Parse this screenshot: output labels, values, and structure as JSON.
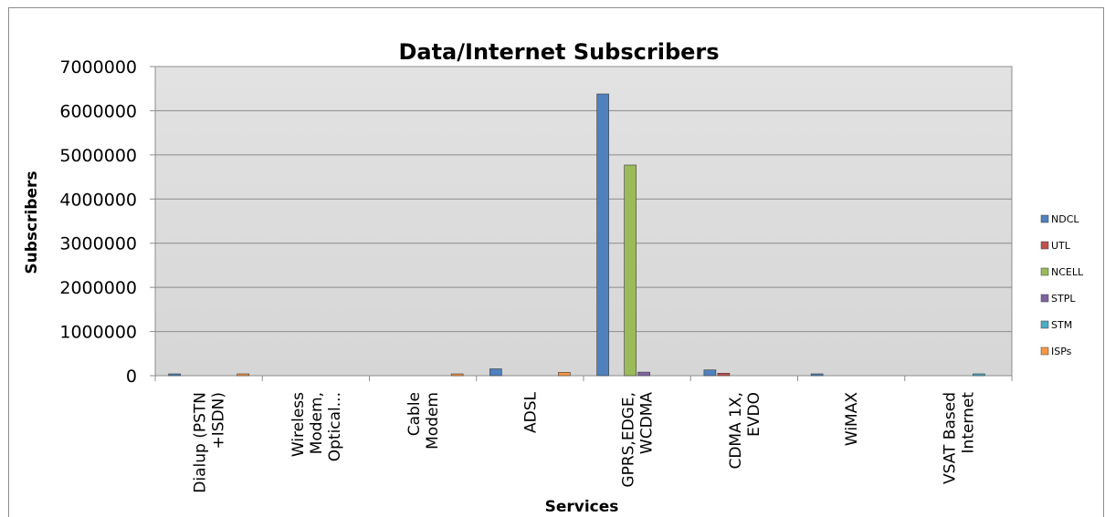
{
  "chart_data": {
    "type": "bar",
    "title": "Data/Internet Subscribers",
    "xlabel": "Services",
    "ylabel": "Subscribers",
    "ylim": [
      0,
      7000000
    ],
    "yticks": [
      0,
      1000000,
      2000000,
      3000000,
      4000000,
      5000000,
      6000000,
      7000000
    ],
    "grid": true,
    "legend_position": "right",
    "categories": [
      [
        "Dialup (PSTN",
        "+ISDN)"
      ],
      [
        "Wireless",
        "Modem,",
        "Optical..."
      ],
      [
        "Cable",
        "Modem"
      ],
      [
        "ADSL"
      ],
      [
        "GPRS,EDGE,",
        "WCDMA"
      ],
      [
        "CDMA 1X,",
        "EVDO"
      ],
      [
        "WiMAX"
      ],
      [
        "VSAT Based",
        "Internet"
      ]
    ],
    "series": [
      {
        "name": "NDCL",
        "color": "#4f81bd",
        "values": [
          20000,
          0,
          0,
          155000,
          6380000,
          130000,
          20000,
          0
        ]
      },
      {
        "name": "UTL",
        "color": "#c0504d",
        "values": [
          0,
          0,
          0,
          0,
          0,
          55000,
          0,
          0
        ]
      },
      {
        "name": "NCELL",
        "color": "#9bbb59",
        "values": [
          0,
          0,
          0,
          0,
          4770000,
          0,
          0,
          0
        ]
      },
      {
        "name": "STPL",
        "color": "#8064a2",
        "values": [
          0,
          0,
          0,
          0,
          80000,
          0,
          0,
          0
        ]
      },
      {
        "name": "STM",
        "color": "#4bacc6",
        "values": [
          0,
          0,
          0,
          0,
          0,
          0,
          0,
          20000
        ]
      },
      {
        "name": "ISPs",
        "color": "#f79646",
        "values": [
          20000,
          0,
          20000,
          75000,
          0,
          0,
          0,
          0
        ]
      }
    ]
  }
}
